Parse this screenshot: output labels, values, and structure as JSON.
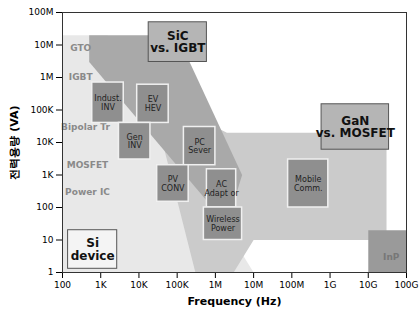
{
  "chart_data": {
    "type": "region",
    "xlabel": "Frequency (Hz)",
    "ylabel": "전력용량 (VA)",
    "log": true,
    "xlim": [
      100,
      100000000000
    ],
    "ylim": [
      1,
      100000000
    ],
    "xticks": [
      100,
      {
        "value": 1000,
        "label": "1K"
      },
      {
        "value": 10000,
        "label": "10K"
      },
      {
        "value": 100000,
        "label": "100K"
      },
      {
        "value": 1000000,
        "label": "1M"
      },
      {
        "value": 10000000,
        "label": "10M"
      },
      {
        "value": 100000000,
        "label": "100M"
      },
      {
        "value": 1000000000,
        "label": "1G"
      },
      {
        "value": 10000000000,
        "label": "10G"
      },
      {
        "value": 100000000000,
        "label": "100G"
      }
    ],
    "yticks": [
      1,
      10,
      100,
      {
        "value": 1000,
        "label": "1K"
      },
      {
        "value": 10000,
        "label": "10K"
      },
      {
        "value": 100000,
        "label": "100K"
      },
      {
        "value": 1000000,
        "label": "1M"
      },
      {
        "value": 10000000,
        "label": "10M"
      },
      {
        "value": 100000000,
        "label": "100M"
      }
    ],
    "regions": [
      {
        "color": "#e8e8e8",
        "points": [
          [
            100,
            1
          ],
          [
            100,
            20000000
          ],
          [
            1500,
            20000000
          ],
          [
            10000000,
            1
          ]
        ]
      },
      {
        "color": "#cbcbcb",
        "points": [
          [
            20000,
            300000
          ],
          [
            2000000,
            20000
          ],
          [
            30000000000,
            20000
          ],
          [
            30000000000,
            10
          ],
          [
            10000000,
            10
          ],
          [
            3000000,
            1
          ],
          [
            300000,
            1
          ]
        ]
      },
      {
        "color": "#a9a9a9",
        "points": [
          [
            500,
            20000000
          ],
          [
            100000,
            20000000
          ],
          [
            5000000,
            1000
          ],
          [
            2000000,
            30
          ],
          [
            500,
            3000000
          ]
        ]
      },
      {
        "color": "#9a9a9a",
        "points": [
          [
            10000000000,
            1
          ],
          [
            10000000000,
            20
          ],
          [
            100000000000,
            20
          ],
          [
            100000000000,
            1
          ]
        ]
      }
    ],
    "boxes": [
      {
        "label": "Indust.\nINV",
        "x": [
          600,
          4000
        ],
        "y": [
          40000,
          700000
        ],
        "color": "#8f8f8f"
      },
      {
        "label": "EV\nHEV",
        "x": [
          9000,
          60000
        ],
        "y": [
          40000,
          600000
        ],
        "color": "#8f8f8f"
      },
      {
        "label": "Gen\nINV",
        "x": [
          3000,
          20000
        ],
        "y": [
          3000,
          40000
        ],
        "color": "#8f8f8f"
      },
      {
        "label": "PC\nSever",
        "x": [
          150000,
          1000000
        ],
        "y": [
          2000,
          30000
        ],
        "color": "#8f8f8f"
      },
      {
        "label": "PV\nCONV",
        "x": [
          30000,
          200000
        ],
        "y": [
          150,
          2000
        ],
        "color": "#8f8f8f"
      },
      {
        "label": "AC\nAdapt or",
        "x": [
          600000,
          3500000
        ],
        "y": [
          100,
          1500
        ],
        "color": "#8f8f8f"
      },
      {
        "label": "Wireless\nPower",
        "x": [
          500000,
          5000000
        ],
        "y": [
          10,
          100
        ],
        "color": "#8f8f8f"
      },
      {
        "label": "Mobile\nComm.",
        "x": [
          80000000,
          900000000
        ],
        "y": [
          100,
          3000
        ],
        "color": "#8f8f8f"
      }
    ],
    "callouts": [
      {
        "label": "SiC\nvs. IGBT",
        "x": [
          18000,
          600000
        ],
        "y": [
          3000000,
          50000000
        ],
        "color": "#b5b5b5"
      },
      {
        "label": "GaN\nvs. MOSFET",
        "x": [
          600000000,
          35000000000
        ],
        "y": [
          6000,
          150000
        ],
        "color": "#b5b5b5"
      },
      {
        "label": "Si\ndevice",
        "x": [
          140,
          2700
        ],
        "y": [
          1.3,
          20
        ],
        "color": "#f4f4f4"
      }
    ],
    "annotations": [
      {
        "text": "GTO",
        "x": 300,
        "y": 8000000,
        "color": "#8a8a8a"
      },
      {
        "text": "IGBT",
        "x": 300,
        "y": 1000000,
        "color": "#8a8a8a"
      },
      {
        "text": "Bipolar Tr",
        "x": 400,
        "y": 30000,
        "color": "#8a8a8a"
      },
      {
        "text": "MOSFET",
        "x": 450,
        "y": 2000,
        "color": "#8a8a8a"
      },
      {
        "text": "Power IC",
        "x": 450,
        "y": 300,
        "color": "#8a8a8a"
      },
      {
        "text": "InP",
        "x": 40000000000,
        "y": 3,
        "color": "#777777"
      }
    ]
  }
}
